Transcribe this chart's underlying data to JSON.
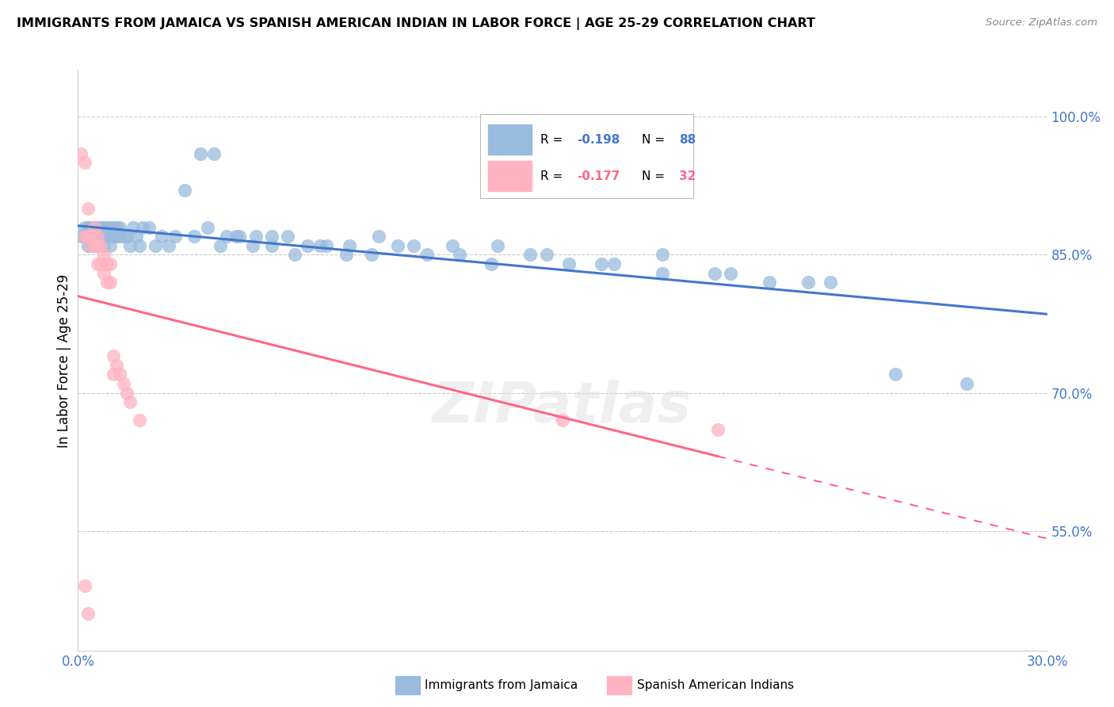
{
  "title": "IMMIGRANTS FROM JAMAICA VS SPANISH AMERICAN INDIAN IN LABOR FORCE | AGE 25-29 CORRELATION CHART",
  "source_text": "Source: ZipAtlas.com",
  "ylabel": "In Labor Force | Age 25-29",
  "ytick_labels": [
    "100.0%",
    "85.0%",
    "70.0%",
    "55.0%"
  ],
  "ytick_values": [
    1.0,
    0.85,
    0.7,
    0.55
  ],
  "xlim": [
    0.0,
    0.3
  ],
  "ylim": [
    0.42,
    1.05
  ],
  "legend1_R": "-0.198",
  "legend1_N": "88",
  "legend2_R": "-0.177",
  "legend2_N": "32",
  "legend1_label": "Immigrants from Jamaica",
  "legend2_label": "Spanish American Indians",
  "blue_color": "#99BBDD",
  "pink_color": "#FFB3C1",
  "line_blue": "#4477CC",
  "line_pink": "#FF6688",
  "grid_color": "#CCCCCC",
  "background_color": "#FFFFFF",
  "jamaica_x": [
    0.001,
    0.002,
    0.002,
    0.003,
    0.003,
    0.003,
    0.004,
    0.004,
    0.004,
    0.005,
    0.005,
    0.005,
    0.005,
    0.006,
    0.006,
    0.006,
    0.007,
    0.007,
    0.007,
    0.008,
    0.008,
    0.008,
    0.009,
    0.009,
    0.01,
    0.01,
    0.01,
    0.011,
    0.011,
    0.012,
    0.012,
    0.013,
    0.013,
    0.014,
    0.015,
    0.016,
    0.017,
    0.018,
    0.019,
    0.02,
    0.022,
    0.024,
    0.026,
    0.028,
    0.03,
    0.033,
    0.036,
    0.04,
    0.044,
    0.049,
    0.054,
    0.06,
    0.067,
    0.075,
    0.083,
    0.093,
    0.104,
    0.116,
    0.13,
    0.145,
    0.162,
    0.181,
    0.202,
    0.226,
    0.038,
    0.042,
    0.046,
    0.05,
    0.055,
    0.06,
    0.065,
    0.071,
    0.077,
    0.084,
    0.091,
    0.099,
    0.108,
    0.118,
    0.128,
    0.14,
    0.152,
    0.166,
    0.181,
    0.197,
    0.214,
    0.233,
    0.253,
    0.275
  ],
  "jamaica_y": [
    0.87,
    0.88,
    0.87,
    0.88,
    0.87,
    0.86,
    0.88,
    0.87,
    0.86,
    0.88,
    0.87,
    0.86,
    0.87,
    0.88,
    0.87,
    0.86,
    0.88,
    0.87,
    0.86,
    0.88,
    0.87,
    0.86,
    0.88,
    0.87,
    0.88,
    0.87,
    0.86,
    0.88,
    0.87,
    0.88,
    0.87,
    0.88,
    0.87,
    0.87,
    0.87,
    0.86,
    0.88,
    0.87,
    0.86,
    0.88,
    0.88,
    0.86,
    0.87,
    0.86,
    0.87,
    0.92,
    0.87,
    0.88,
    0.86,
    0.87,
    0.86,
    0.87,
    0.85,
    0.86,
    0.85,
    0.87,
    0.86,
    0.86,
    0.86,
    0.85,
    0.84,
    0.85,
    0.83,
    0.82,
    0.96,
    0.96,
    0.87,
    0.87,
    0.87,
    0.86,
    0.87,
    0.86,
    0.86,
    0.86,
    0.85,
    0.86,
    0.85,
    0.85,
    0.84,
    0.85,
    0.84,
    0.84,
    0.83,
    0.83,
    0.82,
    0.82,
    0.72,
    0.71
  ],
  "spanish_x": [
    0.001,
    0.002,
    0.002,
    0.003,
    0.003,
    0.004,
    0.004,
    0.005,
    0.005,
    0.006,
    0.006,
    0.006,
    0.007,
    0.007,
    0.008,
    0.008,
    0.009,
    0.009,
    0.01,
    0.01,
    0.011,
    0.011,
    0.012,
    0.013,
    0.014,
    0.015,
    0.016,
    0.019,
    0.15,
    0.198,
    0.002,
    0.003
  ],
  "spanish_y": [
    0.96,
    0.87,
    0.95,
    0.9,
    0.87,
    0.87,
    0.86,
    0.88,
    0.86,
    0.87,
    0.86,
    0.84,
    0.86,
    0.84,
    0.85,
    0.83,
    0.84,
    0.82,
    0.84,
    0.82,
    0.72,
    0.74,
    0.73,
    0.72,
    0.71,
    0.7,
    0.69,
    0.67,
    0.67,
    0.66,
    0.49,
    0.46
  ],
  "watermark": "ZIPatlas"
}
